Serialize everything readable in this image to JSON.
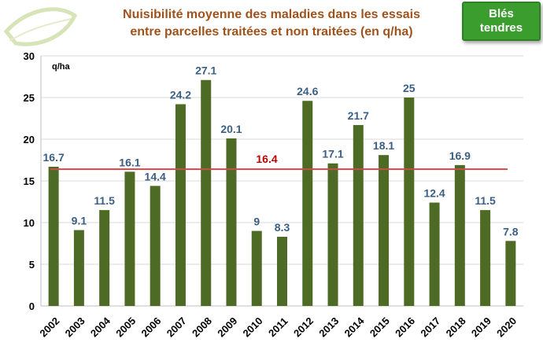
{
  "title": [
    "Nuisibilité moyenne des maladies dans les essais",
    "entre parcelles traitées et non traitées (en q/ha)"
  ],
  "badge": [
    "Blés",
    "tendres"
  ],
  "colors": {
    "bar": "#4e6b26",
    "value_label": "#3b5f82",
    "mean_line": "#c0504d",
    "mean_label": "#c00000",
    "title": "#a0521c",
    "badge": "#3c9d2f"
  },
  "chart_data": {
    "type": "bar",
    "title": "Nuisibilité moyenne des maladies dans les essais entre parcelles traitées et non traitées (en q/ha)",
    "ylabel": "q/ha",
    "xlabel": "",
    "categories": [
      "2002",
      "2003",
      "2004",
      "2005",
      "2006",
      "2007",
      "2008",
      "2009",
      "2010",
      "2011",
      "2012",
      "2013",
      "2014",
      "2015",
      "2016",
      "2017",
      "2018",
      "2019",
      "2020"
    ],
    "values": [
      16.7,
      9.1,
      11.5,
      16.1,
      14.4,
      24.2,
      27.1,
      20.1,
      9,
      8.3,
      24.6,
      17.1,
      21.7,
      18.1,
      25,
      12.4,
      16.9,
      11.5,
      7.8
    ],
    "value_labels": [
      "16.7",
      "9.1",
      "11.5",
      "16.1",
      "14.4",
      "24.2",
      "27.1",
      "20.1",
      "9",
      "8.3",
      "24.6",
      "17.1",
      "21.7",
      "18.1",
      "25",
      "12.4",
      "16.9",
      "11.5",
      "7.8"
    ],
    "ylim": [
      0,
      30
    ],
    "yticks": [
      0,
      5,
      10,
      15,
      20,
      25,
      30
    ],
    "grid": true,
    "mean_line": {
      "value": 16.4,
      "label": "16.4"
    }
  }
}
